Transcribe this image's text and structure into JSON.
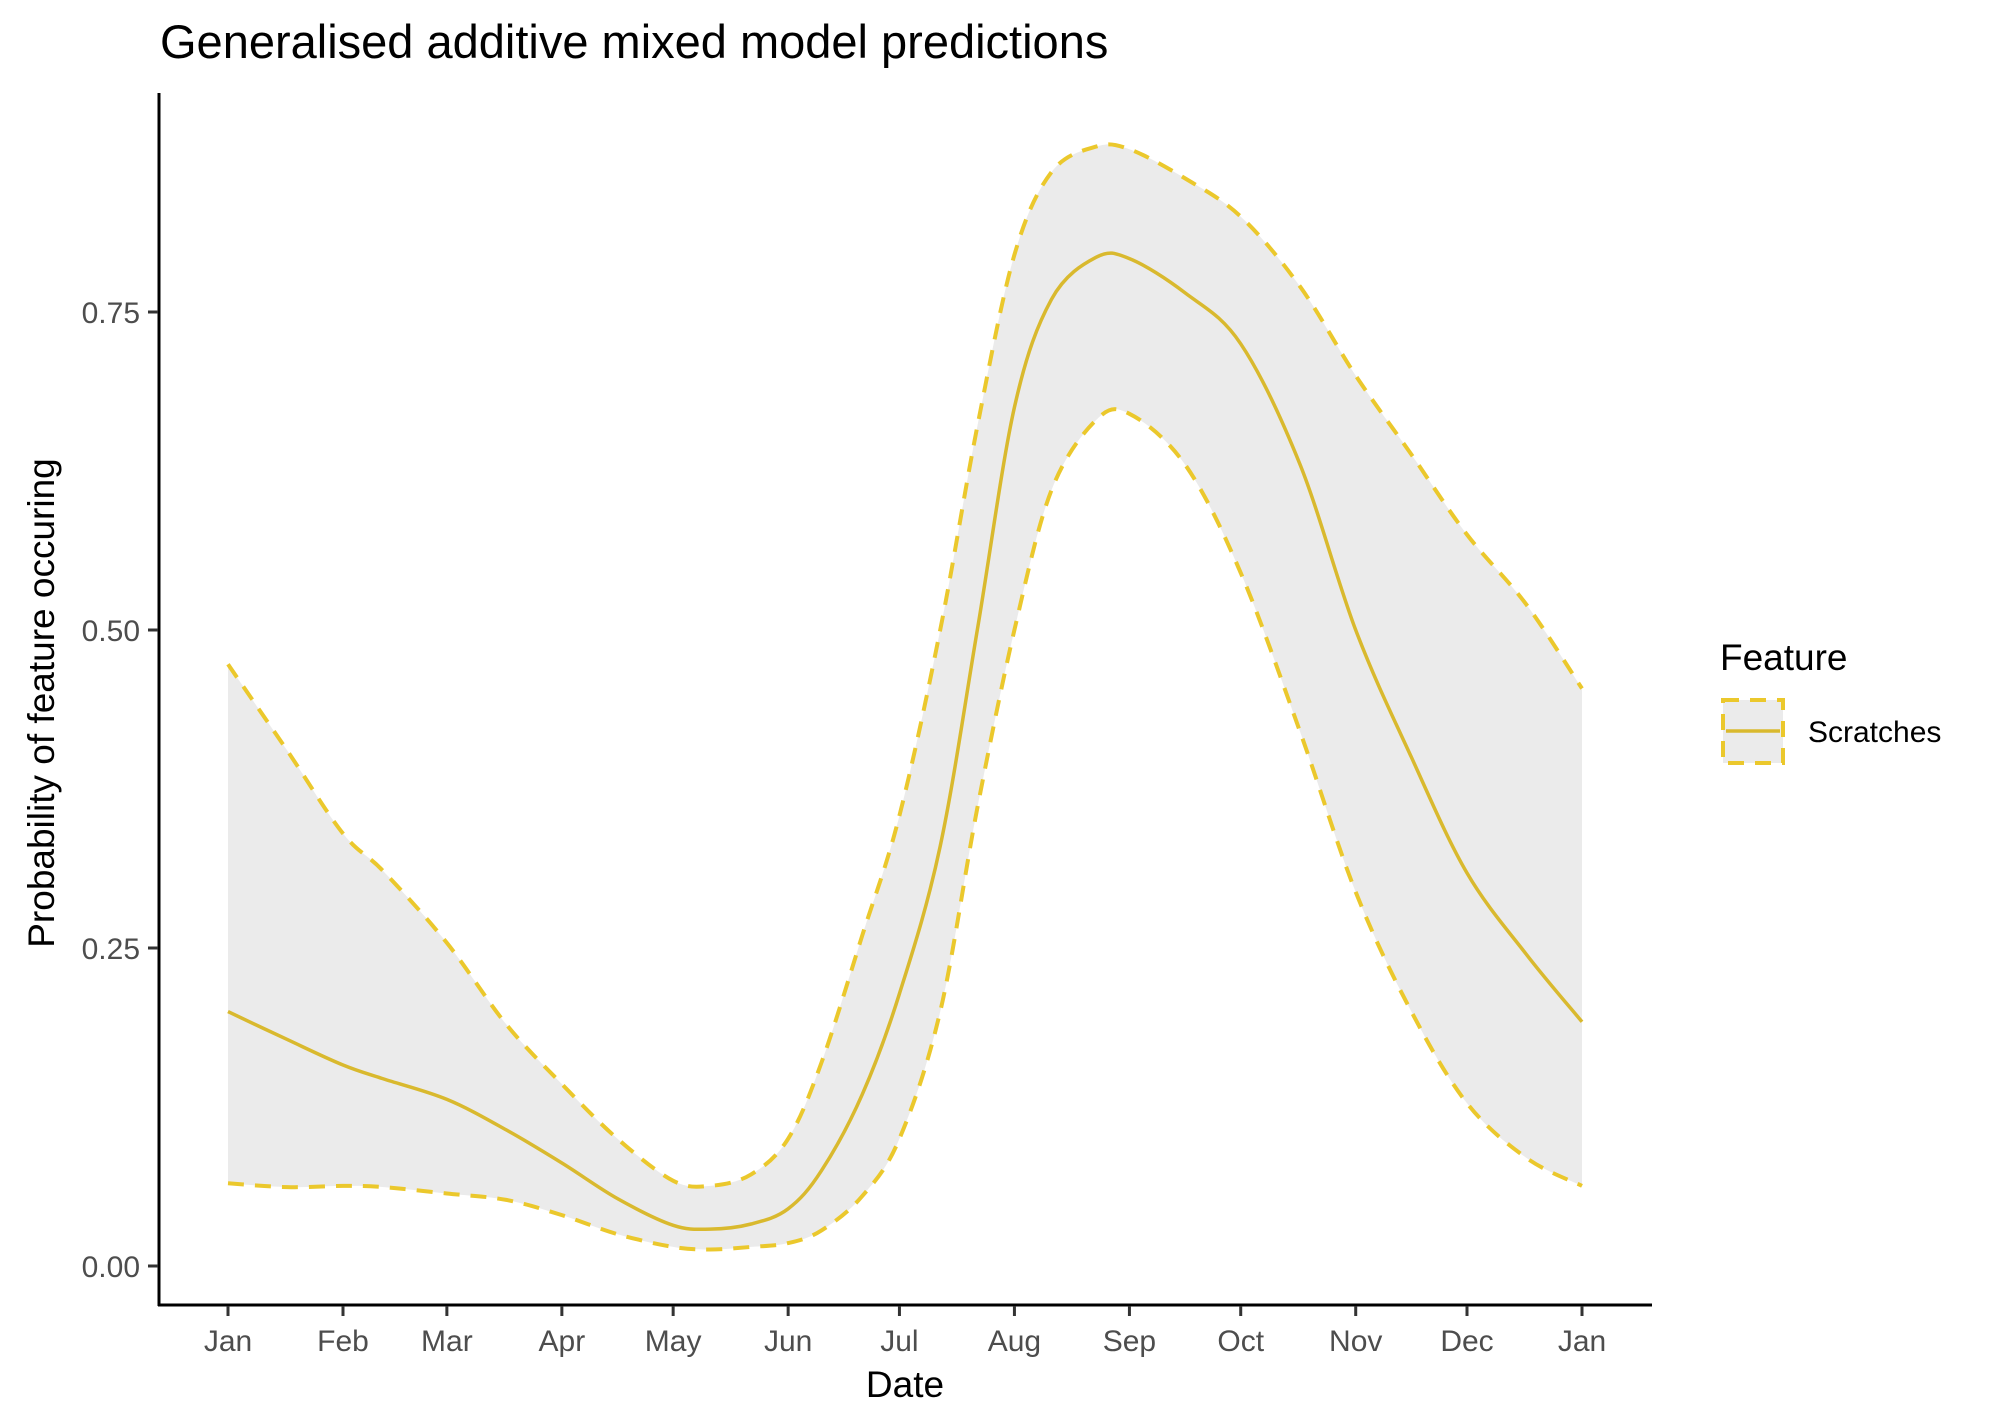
{
  "chart_data": {
    "type": "line",
    "title": "Generalised additive mixed model predictions",
    "xlabel": "Date",
    "ylabel": "Probability of feature occuring",
    "x_unit": "day of year",
    "xlim": [
      -14,
      383
    ],
    "ylim": [
      -0.024,
      0.92
    ],
    "x_ticks": [
      {
        "day": 0,
        "label": "Jan"
      },
      {
        "day": 31,
        "label": "Feb"
      },
      {
        "day": 59,
        "label": "Mar"
      },
      {
        "day": 90,
        "label": "Apr"
      },
      {
        "day": 120,
        "label": "May"
      },
      {
        "day": 151,
        "label": "Jun"
      },
      {
        "day": 181,
        "label": "Jul"
      },
      {
        "day": 212,
        "label": "Aug"
      },
      {
        "day": 243,
        "label": "Sep"
      },
      {
        "day": 273,
        "label": "Oct"
      },
      {
        "day": 304,
        "label": "Nov"
      },
      {
        "day": 334,
        "label": "Dec"
      },
      {
        "day": 365,
        "label": "Jan"
      }
    ],
    "y_ticks": [
      {
        "value": 0.0,
        "label": "0.00"
      },
      {
        "value": 0.25,
        "label": "0.25"
      },
      {
        "value": 0.5,
        "label": "0.50"
      },
      {
        "value": 0.75,
        "label": "0.75"
      }
    ],
    "grid": false,
    "legend": {
      "title": "Feature",
      "position": "right",
      "entries": [
        {
          "label": "Scratches"
        }
      ]
    },
    "colors": {
      "line": "#D9B92E",
      "ci_line": "#EBC82C",
      "ribbon": "#EBEBEB",
      "axis": "#000000",
      "tick_text": "#4D4D4D"
    },
    "x": [
      0,
      16,
      31,
      42,
      59,
      75,
      90,
      105,
      120,
      130,
      141,
      151,
      160,
      171,
      181,
      192,
      202,
      212,
      222,
      234,
      243,
      258,
      273,
      289,
      304,
      319,
      334,
      350,
      365
    ],
    "series": [
      {
        "name": "Scratches",
        "values": [
          0.2,
          0.178,
          0.158,
          0.147,
          0.131,
          0.107,
          0.081,
          0.053,
          0.032,
          0.029,
          0.033,
          0.045,
          0.075,
          0.135,
          0.214,
          0.33,
          0.5,
          0.675,
          0.76,
          0.793,
          0.792,
          0.765,
          0.725,
          0.63,
          0.5,
          0.4,
          0.309,
          0.245,
          0.192
        ],
        "upper": [
          0.473,
          0.405,
          0.34,
          0.31,
          0.254,
          0.19,
          0.143,
          0.1,
          0.067,
          0.063,
          0.072,
          0.1,
          0.16,
          0.26,
          0.354,
          0.5,
          0.66,
          0.795,
          0.86,
          0.88,
          0.878,
          0.855,
          0.825,
          0.77,
          0.7,
          0.638,
          0.575,
          0.52,
          0.454
        ],
        "lower": [
          0.065,
          0.062,
          0.063,
          0.062,
          0.057,
          0.052,
          0.04,
          0.025,
          0.015,
          0.013,
          0.015,
          0.018,
          0.028,
          0.055,
          0.1,
          0.2,
          0.36,
          0.5,
          0.61,
          0.665,
          0.67,
          0.63,
          0.545,
          0.42,
          0.294,
          0.2,
          0.128,
          0.085,
          0.063
        ]
      }
    ]
  }
}
